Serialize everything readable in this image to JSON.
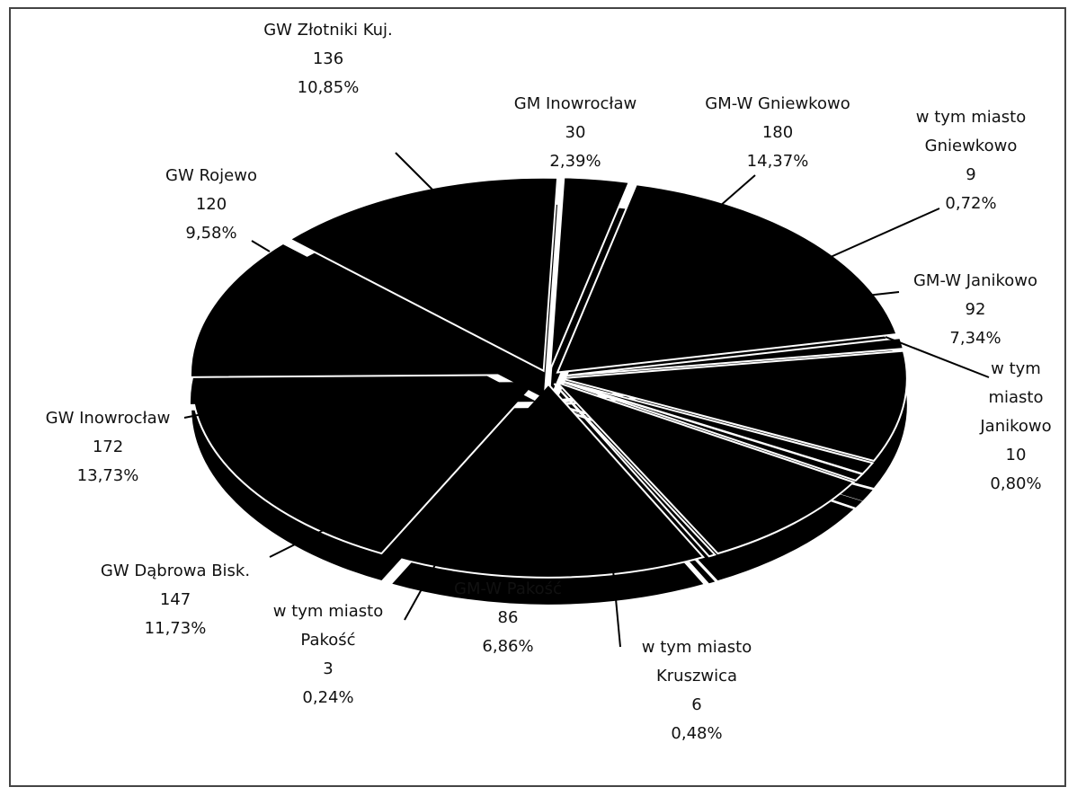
{
  "chart_data": {
    "type": "pie",
    "categories": [
      "GM Inowrocław",
      "GM-W Gniewkowo",
      "w tym miasto Gniewkowo",
      "GM-W Janikowo",
      "w tym miasto Janikowo",
      "w tym miasto Kruszwica",
      "GM-W Pakość",
      "w tym miasto Pakość",
      "GW Dąbrowa Bisk.",
      "GW Inowrocław",
      "GW Rojewo",
      "GW Złotniki Kuj."
    ],
    "values": [
      30,
      180,
      9,
      92,
      10,
      6,
      86,
      3,
      147,
      172,
      120,
      136
    ],
    "percents": [
      2.39,
      14.37,
      0.72,
      7.34,
      0.8,
      0.48,
      6.86,
      0.24,
      11.73,
      13.73,
      9.58,
      10.85
    ],
    "percent_labels": [
      "2,39%",
      "14,37%",
      "0,72%",
      "7,34%",
      "0,80%",
      "0,48%",
      "6,86%",
      "0,24%",
      "11,73%",
      "13,73%",
      "9,58%",
      "10,85%"
    ],
    "color": "#000000"
  }
}
